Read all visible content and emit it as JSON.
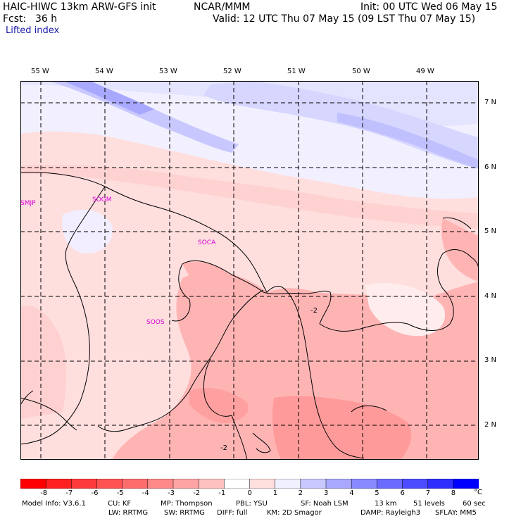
{
  "header": {
    "model_name": "HAIC-HIWC 13km ARW-GFS init",
    "org": "NCAR/MMM",
    "init": "Init: 00 UTC Wed 06 May 15",
    "fcst_label": "Fcst:",
    "fcst_value": "36 h",
    "valid": "Valid: 12 UTC Thu 07 May 15 (09 LST Thu 07 May 15)",
    "field_name": "Lifted index"
  },
  "map": {
    "lon_labels": [
      "55 W",
      "54 W",
      "53 W",
      "52 W",
      "51 W",
      "50 W",
      "49 W"
    ],
    "lat_labels": [
      "7 N",
      "6 N",
      "5 N",
      "4 N",
      "3 N",
      "2 N"
    ],
    "stations": [
      "SMJP",
      "SOGM",
      "SOCA",
      "SOOS"
    ],
    "contour_labels": [
      "-2",
      "-2"
    ]
  },
  "colorbar": {
    "tick_labels": [
      "-8",
      "-7",
      "-6",
      "-5",
      "-4",
      "-3",
      "-2",
      "-1",
      "0",
      "1",
      "2",
      "3",
      "4",
      "5",
      "6",
      "7",
      "8"
    ],
    "unit": "°C",
    "colors": [
      "#ff0000",
      "#ff2020",
      "#ff3a3a",
      "#ff5252",
      "#ff6c6c",
      "#ff8888",
      "#ffa4a4",
      "#ffc0c0",
      "#ffdede",
      "#f0f0ff",
      "#c8c8ff",
      "#a8a8ff",
      "#8888ff",
      "#6a6aff",
      "#4c4cff",
      "#2e2eff",
      "#0000ff"
    ]
  },
  "footer": {
    "line1": [
      "Model Info: V3.6.1",
      "CU: KF",
      "MP: Thompson",
      "PBL: YSU",
      "SF: Noah LSM",
      "13 km",
      "51 levels",
      "60 sec"
    ],
    "line2": [
      "LW: RRTMG",
      "SW: RRTMG",
      "DIFF: full",
      "KM: 2D Smagor",
      "DAMP: Rayleigh3",
      "SFLAY: MM5"
    ]
  }
}
